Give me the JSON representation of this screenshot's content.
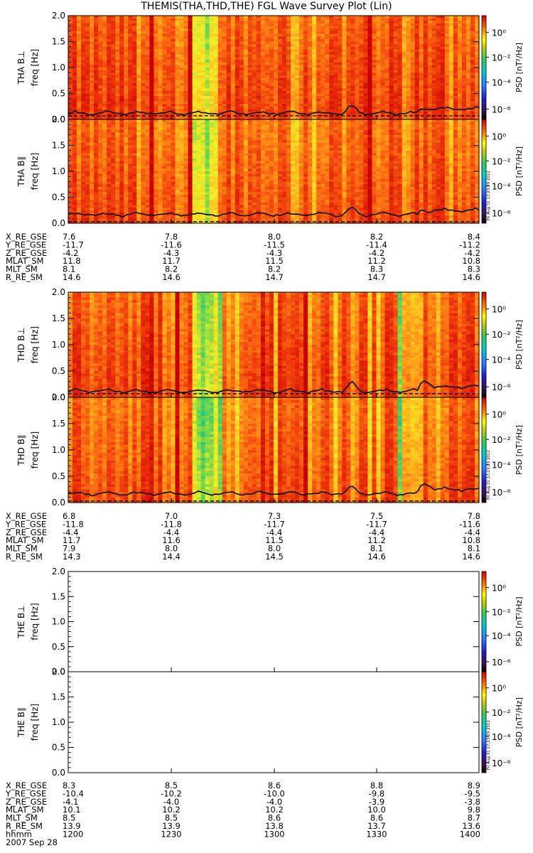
{
  "title": "THEMIS(THA,THD,THE) FGL Wave Survey Plot (Lin)",
  "stamp": "Fri Aug 31 17:23:29 2012",
  "colorbar": {
    "label": "PSD [nT²/Hz]",
    "ticks": [
      "10⁰",
      "10⁻²",
      "10⁻⁴",
      "10⁻⁶"
    ]
  },
  "freq_axis": {
    "label": "freq [Hz]",
    "ticks": [
      "0.0",
      "0.5",
      "1.0",
      "1.5",
      "2.0"
    ],
    "range": [
      0,
      2.0
    ]
  },
  "probes": [
    {
      "id": "THA",
      "panels": [
        {
          "name": "THA B⊥",
          "empty": false,
          "line_peak_x": [
            0.69
          ],
          "lower_line": 0.07
        },
        {
          "name": "THA B∥",
          "empty": false,
          "line_peak_x": [
            0.69
          ],
          "lower_line": 0.03
        }
      ],
      "ephemeris": [
        {
          "label": "X_RE_GSE",
          "values": [
            "7.6",
            "7.8",
            "8.0",
            "8.2",
            "8.4"
          ]
        },
        {
          "label": "Y_RE_GSE",
          "values": [
            "-11.7",
            "-11.6",
            "-11.5",
            "-11.4",
            "-11.2"
          ]
        },
        {
          "label": "Z_RE_GSE",
          "values": [
            "-4.2",
            "-4.3",
            "-4.3",
            "-4.2",
            "-4.2"
          ]
        },
        {
          "label": "MLAT_SM",
          "values": [
            "11.8",
            "11.7",
            "11.5",
            "11.2",
            "10.8"
          ]
        },
        {
          "label": "MLT_SM",
          "values": [
            "8.1",
            "8.2",
            "8.2",
            "8.3",
            "8.3"
          ]
        },
        {
          "label": "R_RE_SM",
          "values": [
            "14.6",
            "14.6",
            "14.7",
            "14.7",
            "14.6"
          ]
        }
      ]
    },
    {
      "id": "THD",
      "panels": [
        {
          "name": "THD B⊥",
          "empty": false,
          "line_peak_x": [
            0.69,
            0.87
          ],
          "lower_line": 0.07
        },
        {
          "name": "THD B∥",
          "empty": false,
          "line_peak_x": [
            0.69,
            0.87
          ],
          "lower_line": 0.03
        }
      ],
      "ephemeris": [
        {
          "label": "X_RE_GSE",
          "values": [
            "6.8",
            "7.0",
            "7.3",
            "7.5",
            "7.8"
          ]
        },
        {
          "label": "Y_RE_GSE",
          "values": [
            "-11.8",
            "-11.8",
            "-11.7",
            "-11.7",
            "-11.6"
          ]
        },
        {
          "label": "Z_RE_GSE",
          "values": [
            "-4.4",
            "-4.4",
            "-4.4",
            "-4.4",
            "-4.4"
          ]
        },
        {
          "label": "MLAT_SM",
          "values": [
            "11.7",
            "11.6",
            "11.5",
            "11.2",
            "10.8"
          ]
        },
        {
          "label": "MLT_SM",
          "values": [
            "7.9",
            "8.0",
            "8.0",
            "8.1",
            "8.1"
          ]
        },
        {
          "label": "R_RE_SM",
          "values": [
            "14.3",
            "14.4",
            "14.5",
            "14.6",
            "14.6"
          ]
        }
      ]
    },
    {
      "id": "THE",
      "panels": [
        {
          "name": "THE B⊥",
          "empty": true
        },
        {
          "name": "THE B∥",
          "empty": true
        }
      ],
      "ephemeris": [
        {
          "label": "X_RE_GSE",
          "values": [
            "8.3",
            "8.5",
            "8.6",
            "8.8",
            "8.9"
          ]
        },
        {
          "label": "Y_RE_GSE",
          "values": [
            "-10.4",
            "-10.2",
            "-10.0",
            "-9.8",
            "-9.5"
          ]
        },
        {
          "label": "Z_RE_GSE",
          "values": [
            "-4.1",
            "-4.0",
            "-4.0",
            "-3.9",
            "-3.8"
          ]
        },
        {
          "label": "MLAT_SM",
          "values": [
            "10.1",
            "10.2",
            "10.2",
            "10.0",
            "9.8"
          ]
        },
        {
          "label": "MLT_SM",
          "values": [
            "8.5",
            "8.5",
            "8.6",
            "8.6",
            "8.7"
          ]
        },
        {
          "label": "R_RE_SM",
          "values": [
            "13.9",
            "13.9",
            "13.8",
            "13.7",
            "13.6"
          ]
        },
        {
          "label": "hhmm",
          "values": [
            "1200",
            "1230",
            "1300",
            "1330",
            "1400"
          ]
        }
      ]
    }
  ],
  "date_label": "2007 Sep 28",
  "chart_data": {
    "type": "heatmap",
    "title": "THEMIS(THA,THD,THE) FGL Wave Survey Plot (Lin)",
    "xlabel": "hhmm",
    "x_ticks": [
      "1200",
      "1230",
      "1300",
      "1330",
      "1400"
    ],
    "ylabel": "freq [Hz]",
    "ylim": [
      0,
      2.0
    ],
    "colorbar_label": "PSD [nT²/Hz]",
    "colorbar_range_log10": [
      -7,
      1.5
    ],
    "series": [
      {
        "name": "THA B⊥"
      },
      {
        "name": "THA B∥"
      },
      {
        "name": "THD B⊥"
      },
      {
        "name": "THD B∥"
      },
      {
        "name": "THE B⊥"
      },
      {
        "name": "THE B∥"
      }
    ],
    "colors": {
      "high": "#cc0000",
      "mid": "#ffff33",
      "low": "#33cc66",
      "very_low": "#2222cc",
      "min": "#000000"
    }
  }
}
